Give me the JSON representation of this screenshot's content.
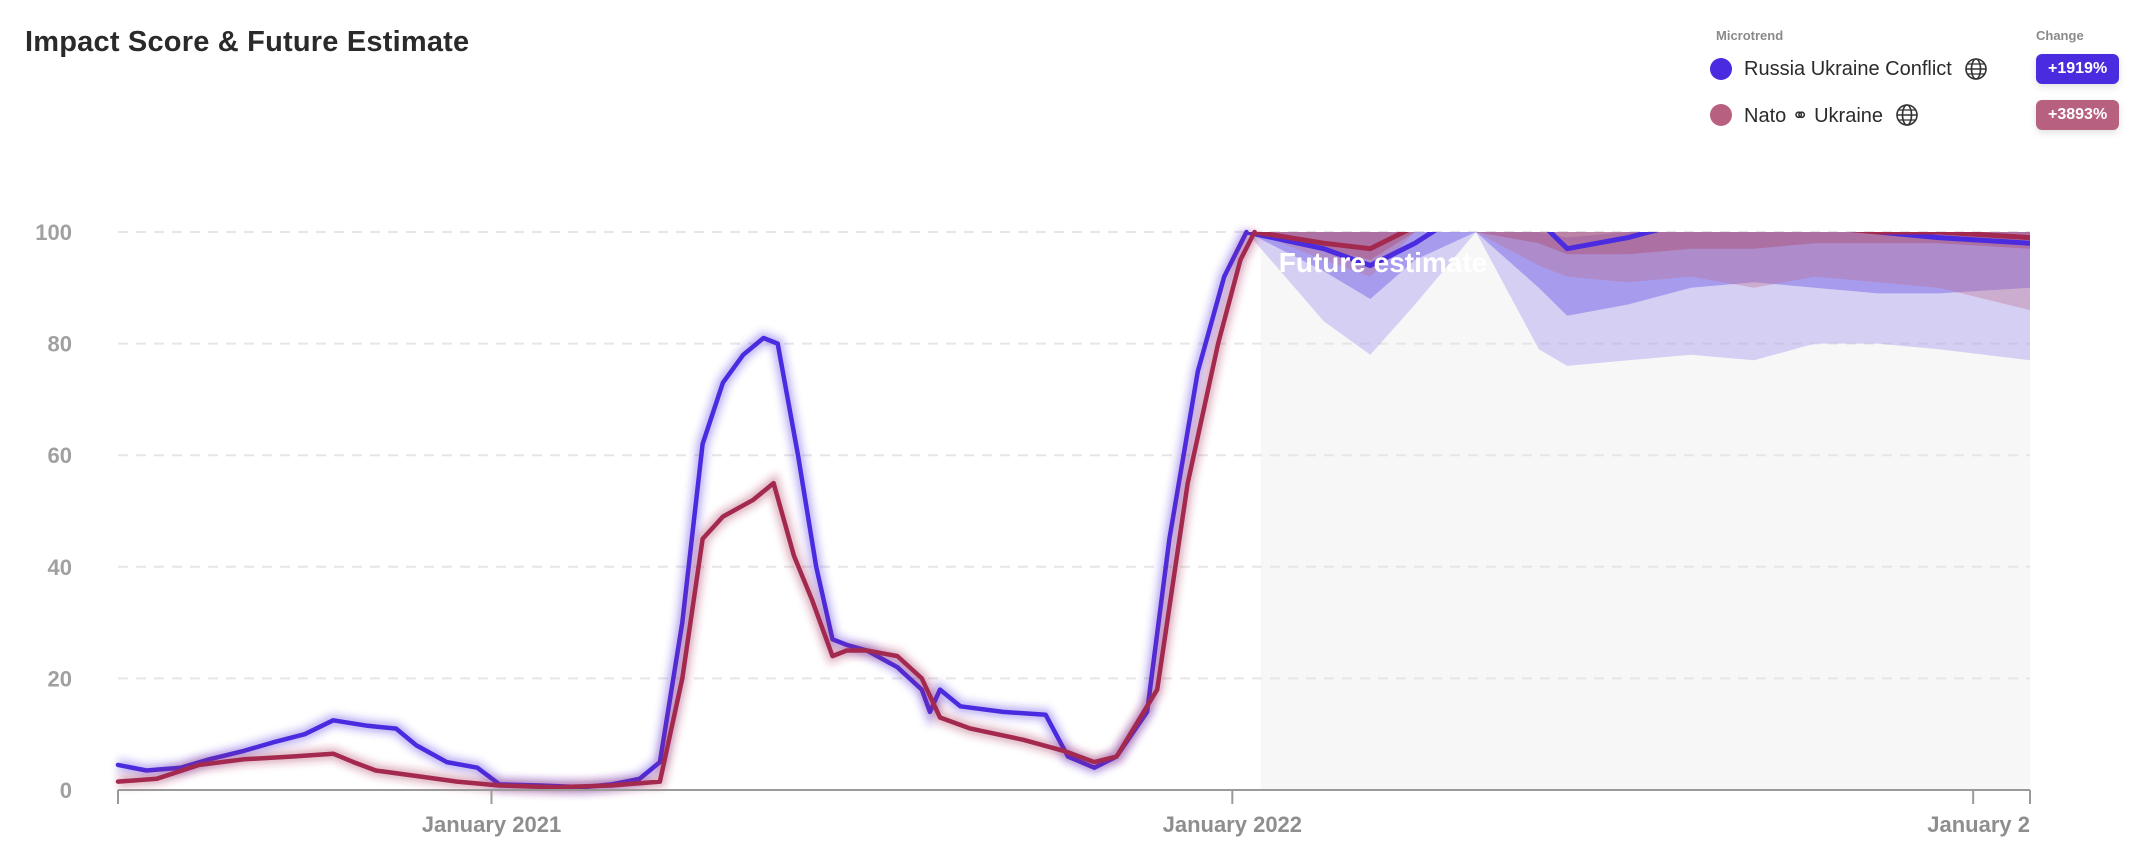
{
  "chart_data": {
    "type": "line",
    "title": "Impact Score & Future Estimate",
    "ylim": [
      0,
      100
    ],
    "yticks": [
      "0",
      "20",
      "40",
      "60",
      "80",
      "100"
    ],
    "xlim": [
      "2020-07-01",
      "2023-01-29"
    ],
    "xticks": [
      {
        "date": "2021-01-01",
        "label": "January 2021"
      },
      {
        "date": "2022-01-01",
        "label": "January 2022"
      },
      {
        "date": "2023-01-01",
        "label": "January 2"
      }
    ],
    "grid": "horizontal-dashed",
    "future_start": "2022-01-15",
    "future_label": "Future estimate",
    "legend_header": "Microtrend",
    "change_header": "Change",
    "series": [
      {
        "name": "Russia Ukraine Conflict",
        "change": "+1919%",
        "color": "#4a2bdf",
        "points": [
          [
            "2020-07-01",
            4.5
          ],
          [
            "2020-07-15",
            3.5
          ],
          [
            "2020-08-01",
            4
          ],
          [
            "2020-08-15",
            5.5
          ],
          [
            "2020-09-01",
            7
          ],
          [
            "2020-09-15",
            8.5
          ],
          [
            "2020-10-01",
            10
          ],
          [
            "2020-10-15",
            12.5
          ],
          [
            "2020-11-01",
            11.5
          ],
          [
            "2020-11-15",
            11
          ],
          [
            "2020-11-25",
            8
          ],
          [
            "2020-12-10",
            5
          ],
          [
            "2020-12-25",
            4
          ],
          [
            "2021-01-05",
            1
          ],
          [
            "2021-01-25",
            0.8
          ],
          [
            "2021-02-15",
            0.5
          ],
          [
            "2021-03-01",
            1
          ],
          [
            "2021-03-15",
            2
          ],
          [
            "2021-03-25",
            5
          ],
          [
            "2021-04-05",
            30
          ],
          [
            "2021-04-15",
            62
          ],
          [
            "2021-04-25",
            73
          ],
          [
            "2021-05-05",
            78
          ],
          [
            "2021-05-15",
            81
          ],
          [
            "2021-05-22",
            80
          ],
          [
            "2021-06-01",
            60
          ],
          [
            "2021-06-10",
            40
          ],
          [
            "2021-06-18",
            27
          ],
          [
            "2021-06-25",
            26
          ],
          [
            "2021-07-05",
            25
          ],
          [
            "2021-07-20",
            22
          ],
          [
            "2021-08-01",
            18
          ],
          [
            "2021-08-05",
            14
          ],
          [
            "2021-08-10",
            18
          ],
          [
            "2021-08-20",
            15
          ],
          [
            "2021-09-10",
            14
          ],
          [
            "2021-10-01",
            13.5
          ],
          [
            "2021-10-12",
            6
          ],
          [
            "2021-10-25",
            4
          ],
          [
            "2021-11-05",
            6
          ],
          [
            "2021-11-20",
            14
          ],
          [
            "2021-12-01",
            45
          ],
          [
            "2021-12-15",
            75
          ],
          [
            "2021-12-28",
            92
          ],
          [
            "2022-01-08",
            100
          ]
        ],
        "forecast": {
          "dates": [
            "2022-01-08",
            "2022-02-15",
            "2022-03-10",
            "2022-04-01",
            "2022-05-01",
            "2022-06-01",
            "2022-06-15",
            "2022-07-15",
            "2022-08-15",
            "2022-09-15",
            "2022-10-15",
            "2022-11-15",
            "2022-12-15",
            "2023-01-29"
          ],
          "median": [
            100,
            97,
            94,
            98,
            105,
            102,
            97,
            99,
            102,
            104,
            102,
            100,
            99,
            98
          ],
          "band50": [
            [
              100,
              100
            ],
            [
              93,
              100
            ],
            [
              88,
              100
            ],
            [
              95,
              100
            ],
            [
              100,
              100
            ],
            [
              90,
              100
            ],
            [
              85,
              99
            ],
            [
              87,
              100
            ],
            [
              90,
              100
            ],
            [
              91,
              100
            ],
            [
              90,
              100
            ],
            [
              89,
              100
            ],
            [
              89,
              100
            ],
            [
              90,
              100
            ]
          ],
          "band80": [
            [
              100,
              100
            ],
            [
              84,
              100
            ],
            [
              78,
              100
            ],
            [
              87,
              100
            ],
            [
              100,
              100
            ],
            [
              79,
              100
            ],
            [
              76,
              100
            ],
            [
              77,
              100
            ],
            [
              78,
              100
            ],
            [
              77,
              100
            ],
            [
              80,
              100
            ],
            [
              80,
              100
            ],
            [
              79,
              100
            ],
            [
              77,
              100
            ]
          ]
        }
      },
      {
        "name": "Nato ⚭ Ukraine",
        "change": "+3893%",
        "color": "#a3294f",
        "points": [
          [
            "2020-07-01",
            1.5
          ],
          [
            "2020-07-20",
            2
          ],
          [
            "2020-08-10",
            4.5
          ],
          [
            "2020-09-01",
            5.5
          ],
          [
            "2020-09-25",
            6
          ],
          [
            "2020-10-15",
            6.5
          ],
          [
            "2020-10-25",
            5
          ],
          [
            "2020-11-05",
            3.5
          ],
          [
            "2020-11-25",
            2.5
          ],
          [
            "2020-12-15",
            1.5
          ],
          [
            "2021-01-05",
            0.8
          ],
          [
            "2021-02-01",
            0.5
          ],
          [
            "2021-03-01",
            0.8
          ],
          [
            "2021-03-25",
            1.5
          ],
          [
            "2021-04-05",
            20
          ],
          [
            "2021-04-15",
            45
          ],
          [
            "2021-04-25",
            49
          ],
          [
            "2021-05-10",
            52
          ],
          [
            "2021-05-20",
            55
          ],
          [
            "2021-05-30",
            42
          ],
          [
            "2021-06-08",
            34
          ],
          [
            "2021-06-18",
            24
          ],
          [
            "2021-06-25",
            25
          ],
          [
            "2021-07-05",
            25
          ],
          [
            "2021-07-20",
            24
          ],
          [
            "2021-08-01",
            20
          ],
          [
            "2021-08-10",
            13
          ],
          [
            "2021-08-25",
            11
          ],
          [
            "2021-09-20",
            9
          ],
          [
            "2021-10-10",
            7
          ],
          [
            "2021-10-25",
            5
          ],
          [
            "2021-11-05",
            6
          ],
          [
            "2021-11-25",
            18
          ],
          [
            "2021-12-10",
            55
          ],
          [
            "2021-12-25",
            80
          ],
          [
            "2022-01-05",
            95
          ],
          [
            "2022-01-12",
            100
          ]
        ],
        "forecast": {
          "dates": [
            "2022-01-12",
            "2022-02-15",
            "2022-03-10",
            "2022-04-01",
            "2022-05-01",
            "2022-06-01",
            "2022-06-15",
            "2022-07-15",
            "2022-08-15",
            "2022-09-15",
            "2022-10-15",
            "2022-11-15",
            "2022-12-15",
            "2023-01-29"
          ],
          "median": [
            100,
            98,
            97,
            101,
            103,
            103,
            102,
            103,
            103,
            101,
            101,
            100,
            100,
            99
          ],
          "band50": [
            [
              100,
              100
            ],
            [
              97,
              100
            ],
            [
              95,
              100
            ],
            [
              100,
              100
            ],
            [
              100,
              100
            ],
            [
              98,
              100
            ],
            [
              96,
              100
            ],
            [
              96,
              100
            ],
            [
              97,
              100
            ],
            [
              97,
              100
            ],
            [
              98,
              100
            ],
            [
              98,
              100
            ],
            [
              98,
              100
            ],
            [
              97,
              100
            ]
          ],
          "band80": [
            [
              100,
              100
            ],
            [
              95,
              100
            ],
            [
              92,
              100
            ],
            [
              100,
              100
            ],
            [
              100,
              100
            ],
            [
              94,
              100
            ],
            [
              92,
              100
            ],
            [
              91,
              100
            ],
            [
              92,
              100
            ],
            [
              90,
              100
            ],
            [
              92,
              100
            ],
            [
              91,
              100
            ],
            [
              90,
              100
            ],
            [
              86,
              100
            ]
          ]
        }
      }
    ]
  }
}
